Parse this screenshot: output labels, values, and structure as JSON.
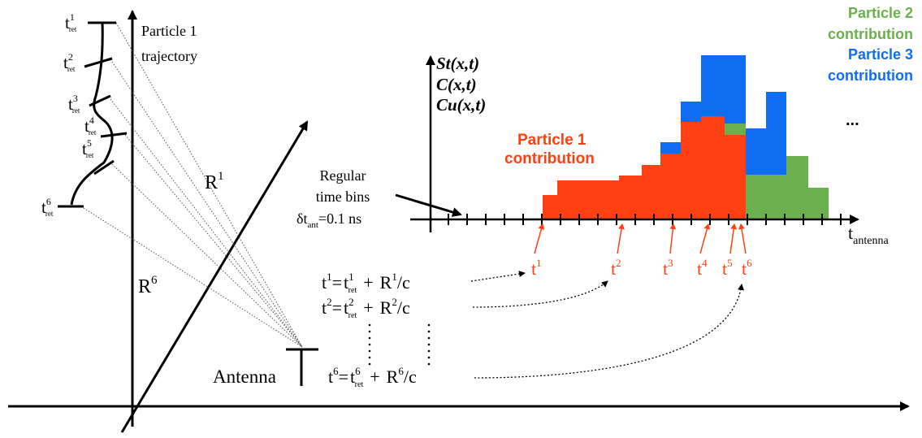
{
  "labels": {
    "particle1_trajectory_line1": "Particle 1",
    "particle1_trajectory_line2": "trajectory",
    "t": "t",
    "ret": "ret",
    "tret_superscripts": [
      "1",
      "2",
      "3",
      "4",
      "5",
      "6"
    ],
    "R": "R",
    "R1_sup": "1",
    "R6_sup": "6",
    "antenna": "Antenna",
    "regular_line1": "Regular",
    "regular_line2": "time bins",
    "delta_t": "δt",
    "delta_sub": "ant",
    "delta_value": "=0.1 ns",
    "t_antenna_sub": "antenna",
    "y_label_1": "St(x,t)",
    "y_label_2": "C(x,t)",
    "y_label_3": "Cu(x,t)",
    "particle1_line1": "Particle 1",
    "particle1_line2": "contribution",
    "particle2_line1": "Particle 2",
    "particle2_line2": "contribution",
    "particle3_line1": "Particle 3",
    "particle3_line2": "contribution",
    "ellipsis": "...",
    "equation_rows": [
      {
        "lhs_sup": "1",
        "ret_sup": "1",
        "r_sup": "1"
      },
      {
        "lhs_sup": "2",
        "ret_sup": "2",
        "r_sup": "2"
      },
      {
        "lhs_sup": "6",
        "ret_sup": "6",
        "r_sup": "6"
      }
    ],
    "eq_equals": "=",
    "eq_plus": "+",
    "eq_over_c": "/c",
    "antenna_times": [
      "1",
      "2",
      "3",
      "4",
      "5",
      "6"
    ]
  },
  "colors": {
    "particle1": "#ff4012",
    "particle2": "#6ab04c",
    "particle3": "#0e6df2",
    "axis": "#000000"
  }
}
